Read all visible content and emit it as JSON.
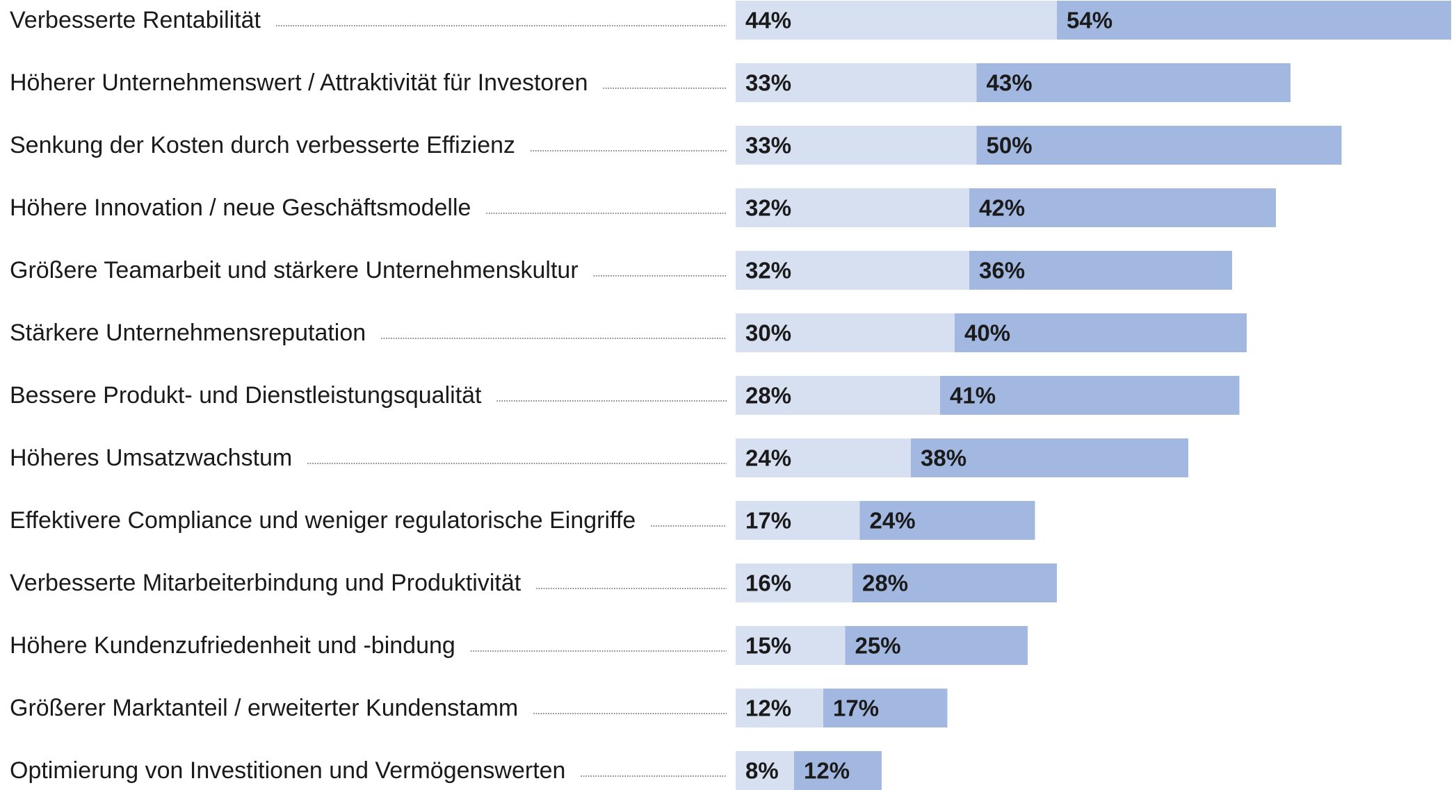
{
  "chart_data": {
    "type": "stacked-bar",
    "orientation": "horizontal",
    "categories": [
      "Verbesserte Rentabilität",
      "Höherer Unternehmenswert / Attraktivität für Investoren",
      "Senkung der Kosten durch verbesserte Effizienz",
      "Höhere Innovation / neue Geschäftsmodelle",
      "Größere Teamarbeit und stärkere Unternehmenskultur",
      "Stärkere Unternehmensreputation",
      "Bessere Produkt- und Dienstleistungsqualität",
      "Höheres Umsatzwachstum",
      "Effektivere Compliance und weniger regulatorische Eingriffe",
      "Verbesserte Mitarbeiterbindung und Produktivität",
      "Höhere Kundenzufriedenheit und -bindung",
      "Größerer Marktanteil / erweiterter Kundenstamm",
      "Optimierung von Investitionen und Vermögenswerten"
    ],
    "series": [
      {
        "color": "#d6e0f1",
        "values": [
          44,
          33,
          33,
          32,
          32,
          30,
          28,
          24,
          17,
          16,
          15,
          12,
          8
        ],
        "value_labels": [
          "44%",
          "33%",
          "33%",
          "32%",
          "32%",
          "30%",
          "28%",
          "24%",
          "17%",
          "16%",
          "15%",
          "12%",
          "8%"
        ]
      },
      {
        "color": "#a3b8e0",
        "values": [
          54,
          43,
          50,
          42,
          36,
          40,
          41,
          38,
          24,
          28,
          25,
          17,
          12
        ],
        "value_labels": [
          "54%",
          "43%",
          "50%",
          "42%",
          "36%",
          "40%",
          "41%",
          "38%",
          "24%",
          "28%",
          "25%",
          "17%",
          "12%"
        ]
      }
    ]
  }
}
